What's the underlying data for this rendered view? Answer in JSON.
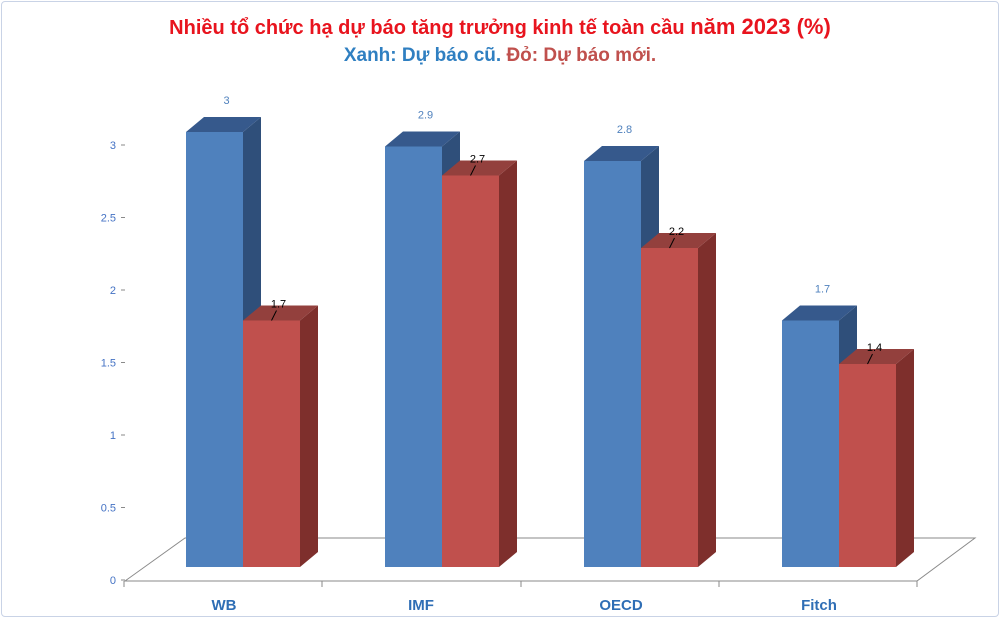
{
  "title": {
    "line1_prefix": "Nhiều tổ chức hạ dự báo tăng trưởng kinh tế toàn cầu",
    "line1_year": "năm 2023 (%)",
    "legend_old": "Xanh: Dự báo cũ.",
    "legend_new": "Đỏ: Dự báo mới."
  },
  "colors": {
    "old_front": "#4f81bd",
    "old_side": "#2f4f7a",
    "old_top": "#36598c",
    "new_front": "#c0504d",
    "new_side": "#7e2f2c",
    "new_top": "#93403d"
  },
  "chart_data": {
    "type": "bar",
    "categories": [
      "WB",
      "IMF",
      "OECD",
      "Fitch"
    ],
    "series": [
      {
        "values": [
          3.0,
          2.9,
          2.8,
          1.7
        ]
      },
      {
        "values": [
          1.7,
          2.7,
          2.2,
          1.4
        ]
      }
    ],
    "data_labels_old": [
      "3",
      "2.9",
      "2.8",
      "1.7"
    ],
    "data_labels_new": [
      "1.7",
      "2.7",
      "2.2",
      "1.4"
    ],
    "y_ticks": [
      "0",
      "0.5",
      "1",
      "1.5",
      "2",
      "2.5",
      "3"
    ],
    "ylim": [
      0,
      3
    ],
    "grid": false,
    "legend": "none"
  }
}
